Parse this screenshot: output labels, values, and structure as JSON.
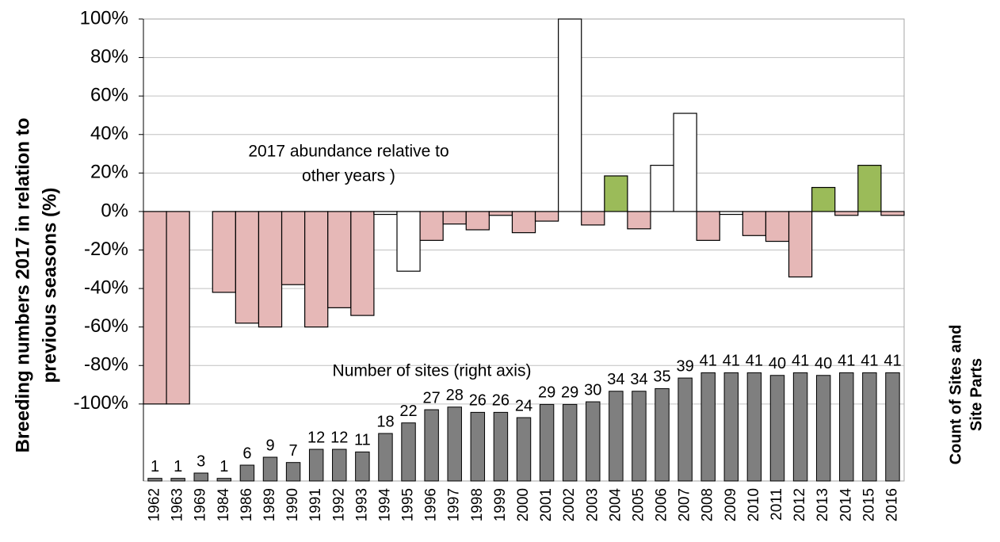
{
  "chart_data": {
    "type": "bar",
    "y_label": [
      "Breeding numbers 2017 in relation to",
      "previous seasons (%)"
    ],
    "y2_label": [
      "Count of Sites and",
      "Site Parts"
    ],
    "annotations": [
      [
        "2017 abundance relative to",
        "other years )"
      ],
      [
        "Number of sites (right axis)"
      ]
    ],
    "categories": [
      "1962",
      "1963",
      "1969",
      "1984",
      "1986",
      "1989",
      "1990",
      "1991",
      "1992",
      "1993",
      "1994",
      "1995",
      "1996",
      "1997",
      "1998",
      "1999",
      "2000",
      "2001",
      "2002",
      "2003",
      "2004",
      "2005",
      "2006",
      "2007",
      "2008",
      "2009",
      "2010",
      "2011",
      "2012",
      "2013",
      "2014",
      "2015",
      "2016"
    ],
    "series": [
      {
        "values": [
          -100,
          -100,
          null,
          -42,
          -58,
          -60,
          -38,
          -60,
          -50,
          -54,
          -1.5,
          -31,
          -15,
          -6.5,
          -9.5,
          -2,
          -11,
          -5,
          100,
          -7,
          18.5,
          -9,
          24,
          51,
          -15,
          -1.5,
          -12.5,
          -15.5,
          -34,
          12.5,
          -2,
          24,
          -2
        ],
        "colors": [
          "#e6b8b7",
          "#e6b8b7",
          "#ffffff",
          "#e6b8b7",
          "#e6b8b7",
          "#e6b8b7",
          "#e6b8b7",
          "#e6b8b7",
          "#e6b8b7",
          "#e6b8b7",
          "#ffffff",
          "#ffffff",
          "#e6b8b7",
          "#e6b8b7",
          "#e6b8b7",
          "#e6b8b7",
          "#e6b8b7",
          "#e6b8b7",
          "#ffffff",
          "#e6b8b7",
          "#9bbb59",
          "#e6b8b7",
          "#ffffff",
          "#ffffff",
          "#e6b8b7",
          "#ffffff",
          "#e6b8b7",
          "#e6b8b7",
          "#e6b8b7",
          "#9bbb59",
          "#e6b8b7",
          "#9bbb59",
          "#e6b8b7"
        ]
      },
      {
        "values": [
          1,
          1,
          3,
          1,
          6,
          9,
          7,
          12,
          12,
          11,
          18,
          22,
          27,
          28,
          26,
          26,
          24,
          29,
          29,
          30,
          34,
          34,
          35,
          39,
          41,
          41,
          41,
          40,
          41,
          40,
          41,
          41,
          41
        ],
        "color": "#7f7f7f",
        "axis": "y2",
        "show_values": true
      }
    ],
    "ylim": [
      -140,
      100
    ],
    "yticks": [
      {
        "value": 100,
        "label": "100%"
      },
      {
        "value": 80,
        "label": "80%"
      },
      {
        "value": 60,
        "label": "60%"
      },
      {
        "value": 40,
        "label": "40%"
      },
      {
        "value": 20,
        "label": "20%"
      },
      {
        "value": 0,
        "label": "0%"
      },
      {
        "value": -20,
        "label": "-20%"
      },
      {
        "value": -40,
        "label": "-40%"
      },
      {
        "value": -60,
        "label": "-60%"
      },
      {
        "value": -80,
        "label": "-80%"
      },
      {
        "value": -100,
        "label": "-100%"
      }
    ],
    "y2lim": [
      0,
      175
    ],
    "grid": true
  }
}
